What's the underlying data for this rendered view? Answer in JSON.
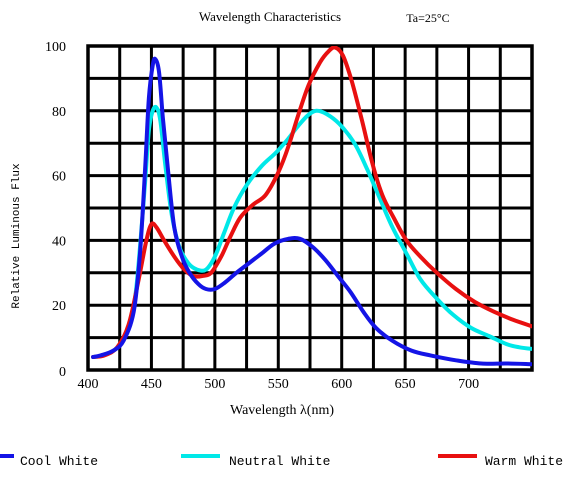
{
  "chart_data": {
    "type": "line",
    "title": "Wavelength Characteristics",
    "condition": "Ta=25°C",
    "xlabel": "Wavelength λ(nm)",
    "ylabel": "Relative Luminous Flux",
    "xlim": [
      400,
      750
    ],
    "ylim": [
      0,
      100
    ],
    "x_ticks": [
      400,
      450,
      500,
      550,
      600,
      650,
      700
    ],
    "y_ticks": [
      0,
      20,
      40,
      60,
      80,
      100
    ],
    "grid": true,
    "legend_position": "bottom",
    "series": [
      {
        "name": "Cool White",
        "color": "#1414e6",
        "points": [
          [
            404,
            4
          ],
          [
            410,
            4.5
          ],
          [
            420,
            6
          ],
          [
            428,
            9
          ],
          [
            436,
            18
          ],
          [
            441,
            36
          ],
          [
            445,
            62
          ],
          [
            448,
            84
          ],
          [
            451,
            94
          ],
          [
            453,
            96
          ],
          [
            456,
            92
          ],
          [
            459,
            78
          ],
          [
            463,
            62
          ],
          [
            468,
            44
          ],
          [
            474,
            35
          ],
          [
            480,
            30
          ],
          [
            487,
            26.5
          ],
          [
            493,
            25
          ],
          [
            500,
            25
          ],
          [
            508,
            27
          ],
          [
            517,
            30
          ],
          [
            527,
            33
          ],
          [
            537,
            36
          ],
          [
            547,
            39
          ],
          [
            558,
            40.5
          ],
          [
            567,
            40.5
          ],
          [
            577,
            38
          ],
          [
            587,
            34
          ],
          [
            597,
            29
          ],
          [
            607,
            24
          ],
          [
            617,
            18
          ],
          [
            627,
            13
          ],
          [
            640,
            9
          ],
          [
            655,
            6
          ],
          [
            670,
            4.5
          ],
          [
            690,
            3
          ],
          [
            710,
            2
          ],
          [
            730,
            2
          ],
          [
            750,
            1.8
          ]
        ]
      },
      {
        "name": "Neutral White",
        "color": "#00e8e8",
        "points": [
          [
            404,
            4
          ],
          [
            412,
            4.5
          ],
          [
            422,
            6.5
          ],
          [
            431,
            12
          ],
          [
            437,
            22
          ],
          [
            441,
            38
          ],
          [
            445,
            58
          ],
          [
            448,
            74
          ],
          [
            451,
            80
          ],
          [
            454,
            81
          ],
          [
            457,
            77
          ],
          [
            461,
            63
          ],
          [
            466,
            48
          ],
          [
            472,
            38
          ],
          [
            479,
            33
          ],
          [
            486,
            31
          ],
          [
            493,
            31
          ],
          [
            500,
            35
          ],
          [
            507,
            42
          ],
          [
            515,
            50
          ],
          [
            525,
            57
          ],
          [
            537,
            63
          ],
          [
            548,
            67
          ],
          [
            557,
            71
          ],
          [
            565,
            75
          ],
          [
            573,
            78.5
          ],
          [
            580,
            80
          ],
          [
            588,
            79
          ],
          [
            598,
            76
          ],
          [
            610,
            70
          ],
          [
            620,
            62
          ],
          [
            630,
            53
          ],
          [
            640,
            44
          ],
          [
            651,
            36
          ],
          [
            662,
            28
          ],
          [
            675,
            22
          ],
          [
            688,
            17
          ],
          [
            702,
            13
          ],
          [
            716,
            10.5
          ],
          [
            730,
            8
          ],
          [
            740,
            7
          ],
          [
            750,
            6.5
          ]
        ]
      },
      {
        "name": "Warm White",
        "color": "#e81010",
        "points": [
          [
            404,
            4
          ],
          [
            413,
            4.5
          ],
          [
            423,
            7
          ],
          [
            432,
            14
          ],
          [
            440,
            28
          ],
          [
            446,
            40
          ],
          [
            450,
            45
          ],
          [
            454,
            44
          ],
          [
            460,
            40
          ],
          [
            468,
            35
          ],
          [
            476,
            31
          ],
          [
            483,
            29
          ],
          [
            490,
            29
          ],
          [
            497,
            30
          ],
          [
            505,
            35
          ],
          [
            512,
            41
          ],
          [
            520,
            47
          ],
          [
            530,
            51
          ],
          [
            540,
            54
          ],
          [
            550,
            61
          ],
          [
            558,
            69
          ],
          [
            566,
            79
          ],
          [
            574,
            88
          ],
          [
            583,
            95
          ],
          [
            590,
            98.5
          ],
          [
            595,
            99.5
          ],
          [
            601,
            97
          ],
          [
            608,
            89
          ],
          [
            616,
            77
          ],
          [
            624,
            64
          ],
          [
            632,
            54
          ],
          [
            641,
            47
          ],
          [
            651,
            40
          ],
          [
            662,
            35
          ],
          [
            675,
            30
          ],
          [
            690,
            25
          ],
          [
            705,
            21
          ],
          [
            720,
            18
          ],
          [
            735,
            15.5
          ],
          [
            750,
            13.5
          ]
        ]
      }
    ]
  }
}
